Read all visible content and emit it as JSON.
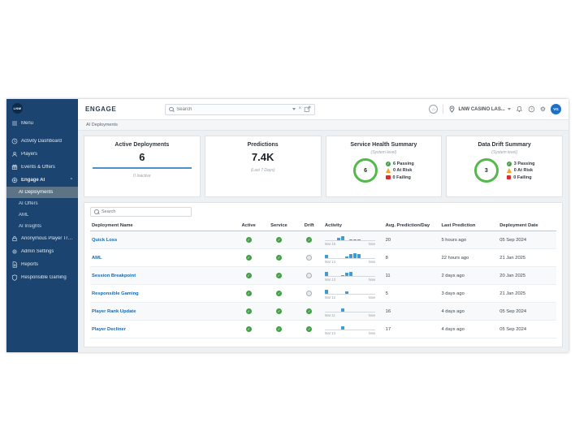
{
  "colors": {
    "sidebar_bg": "#1b4470",
    "accent_blue": "#1769b0",
    "success_green": "#43a047",
    "warning_orange": "#f5a623",
    "danger_red": "#d32f2f",
    "spark_blue": "#3d9bd6",
    "card_divider_blue": "#4a90c9"
  },
  "sidebar": {
    "logo": "LNW",
    "items": [
      {
        "label": "Menu",
        "icon": "menu-icon",
        "first": true
      },
      {
        "label": "Activity Dashboard",
        "icon": "activity-dashboard-icon"
      },
      {
        "label": "Players",
        "icon": "players-icon"
      },
      {
        "label": "Events & Offers",
        "icon": "events-offers-icon"
      },
      {
        "label": "Engage AI",
        "icon": "engage-ai-icon",
        "parent": true,
        "caret": "⌃"
      },
      {
        "label": "AI Deployments",
        "sub": true,
        "selected": true
      },
      {
        "label": "AI Offers",
        "sub": true
      },
      {
        "label": "AML",
        "sub": true
      },
      {
        "label": "AI Insights",
        "sub": true
      },
      {
        "label": "Anonymous Player Tracki...",
        "icon": "anonymous-player-icon"
      },
      {
        "label": "Admin Settings",
        "icon": "admin-settings-icon"
      },
      {
        "label": "Reports",
        "icon": "reports-icon"
      },
      {
        "label": "Responsible Gaming",
        "icon": "responsible-gaming-icon"
      }
    ]
  },
  "header": {
    "title": "ENGAGE",
    "search_placeholder": "Search",
    "location_label": "LNW CASINO LAS...",
    "avatar_initials": "VG"
  },
  "breadcrumb": "AI Deployments",
  "cards": {
    "active_deployments": {
      "title": "Active Deployments",
      "value": "6",
      "foot": "0 Inactive"
    },
    "predictions": {
      "title": "Predictions",
      "value": "7.4K",
      "foot": "(Last 7 Days)"
    },
    "service_health": {
      "title": "Service Health Summary",
      "subtitle": "(System level)",
      "donut_value": "6",
      "legend": [
        {
          "label": "6 Passing",
          "state": "pass"
        },
        {
          "label": "0 At Risk",
          "state": "risk"
        },
        {
          "label": "0 Failing",
          "state": "fail"
        }
      ]
    },
    "data_drift": {
      "title": "Data Drift Summary",
      "subtitle": "(System level)",
      "donut_value": "3",
      "legend": [
        {
          "label": "3 Passing",
          "state": "pass"
        },
        {
          "label": "0 At Risk",
          "state": "risk"
        },
        {
          "label": "0 Failing",
          "state": "fail"
        }
      ]
    }
  },
  "table": {
    "search_placeholder": "Search",
    "columns": [
      "Deployment Name",
      "Active",
      "Service",
      "Drift",
      "Activity",
      "Avg. Prediction/Day",
      "Last Prediction",
      "Deployment Date"
    ],
    "rows": [
      {
        "name": "Quick Loss",
        "active": "pass",
        "service": "pass",
        "drift": "pass",
        "activity": {
          "bars": [
            0,
            0,
            0,
            3,
            5,
            0,
            1,
            1,
            1,
            0,
            0,
            0
          ],
          "start": "Mar 15",
          "end": "Now"
        },
        "avg": "20",
        "last": "5 hours ago",
        "date": "05 Sep 2024"
      },
      {
        "name": "AML",
        "active": "pass",
        "service": "pass",
        "drift": "none",
        "activity": {
          "bars": [
            4,
            0,
            0,
            0,
            0,
            2,
            5,
            6,
            5,
            0,
            0,
            0
          ],
          "start": "Mar 14",
          "end": "Now"
        },
        "avg": "8",
        "last": "22 hours ago",
        "date": "21 Jan 2025"
      },
      {
        "name": "Session Breakpoint",
        "active": "pass",
        "service": "pass",
        "drift": "none",
        "activity": {
          "bars": [
            5,
            0,
            0,
            0,
            1,
            4,
            5,
            0,
            0,
            0,
            0,
            0
          ],
          "start": "Mar 13",
          "end": "Now"
        },
        "avg": "11",
        "last": "2 days ago",
        "date": "20 Jan 2025"
      },
      {
        "name": "Responsible Gaming",
        "active": "pass",
        "service": "pass",
        "drift": "none",
        "activity": {
          "bars": [
            5,
            0,
            0,
            0,
            0,
            3,
            0,
            0,
            0,
            0,
            0,
            0
          ],
          "start": "Mar 12",
          "end": "Now"
        },
        "avg": "5",
        "last": "3 days ago",
        "date": "21 Jan 2025"
      },
      {
        "name": "Player Rank Update",
        "active": "pass",
        "service": "pass",
        "drift": "pass",
        "activity": {
          "bars": [
            0,
            0,
            0,
            0,
            4,
            0,
            0,
            0,
            0,
            0,
            0,
            0
          ],
          "start": "Mar 11",
          "end": "Now"
        },
        "avg": "16",
        "last": "4 days ago",
        "date": "05 Sep 2024"
      },
      {
        "name": "Player Decliner",
        "active": "pass",
        "service": "pass",
        "drift": "pass",
        "activity": {
          "bars": [
            0,
            0,
            0,
            0,
            4,
            0,
            0,
            0,
            0,
            0,
            0,
            0
          ],
          "start": "Mar 13",
          "end": "Now"
        },
        "avg": "17",
        "last": "4 days ago",
        "date": "05 Sep 2024"
      }
    ]
  }
}
